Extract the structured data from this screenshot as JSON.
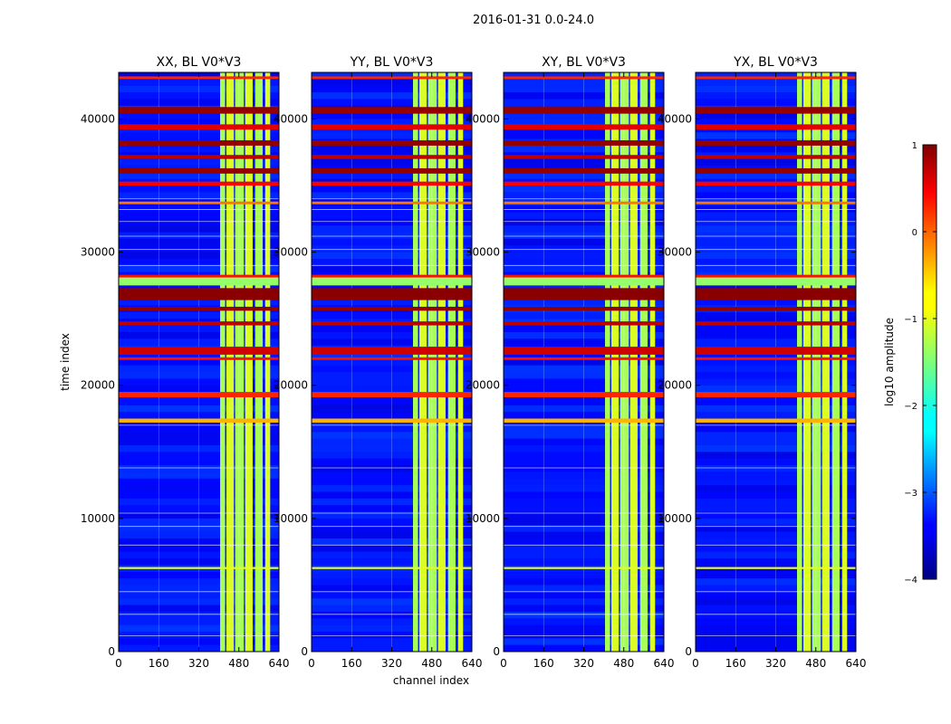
{
  "chart_data": {
    "type": "heatmap",
    "suptitle": "2016-01-31 0.0-24.0",
    "xlabel": "channel index",
    "ylabel": "time index",
    "xlim": [
      0,
      640
    ],
    "ylim": [
      0,
      43500
    ],
    "x_ticks": [
      0,
      160,
      320,
      480,
      640
    ],
    "y_ticks": [
      0,
      10000,
      20000,
      30000,
      40000
    ],
    "y_ticks_text": [
      "0",
      "10000",
      "20000",
      "30000",
      "40000"
    ],
    "panels": [
      {
        "title": "XX, BL V0*V3",
        "pol": "XX"
      },
      {
        "title": "YY, BL V0*V3",
        "pol": "YY"
      },
      {
        "title": "XY, BL V0*V3",
        "pol": "XY"
      },
      {
        "title": "YX, BL V0*V3",
        "pol": "YX"
      }
    ],
    "colorbar": {
      "label": "log10 amplitude",
      "ticks": [
        1,
        0,
        -1,
        -2,
        -3,
        -4
      ],
      "tick_labels": [
        "1",
        "0",
        "−1",
        "−2",
        "−3",
        "−4"
      ],
      "range": [
        -4,
        1
      ],
      "colormap": "jet"
    },
    "background_log_amp": -3.3,
    "signal_bands_channel": [
      [
        405,
        425
      ],
      [
        430,
        460
      ],
      [
        465,
        500
      ],
      [
        505,
        535
      ],
      [
        545,
        575
      ],
      [
        585,
        605
      ]
    ],
    "signal_band_log_amp": -1.2,
    "rfi_time_bands": [
      {
        "t0": 43000,
        "t1": 43200,
        "amp": 0.2
      },
      {
        "t0": 40400,
        "t1": 40900,
        "amp": 0.9
      },
      {
        "t0": 39200,
        "t1": 39600,
        "amp": 0.5
      },
      {
        "t0": 38000,
        "t1": 38400,
        "amp": 0.9
      },
      {
        "t0": 37000,
        "t1": 37300,
        "amp": 0.7
      },
      {
        "t0": 35900,
        "t1": 36300,
        "amp": 0.9
      },
      {
        "t0": 35000,
        "t1": 35300,
        "amp": 0.4
      },
      {
        "t0": 33600,
        "t1": 33800,
        "amp": -0.2
      },
      {
        "t0": 28000,
        "t1": 28300,
        "amp": 0.3
      },
      {
        "t0": 27500,
        "t1": 28100,
        "amp": -1.4
      },
      {
        "t0": 26400,
        "t1": 27300,
        "amp": 0.95
      },
      {
        "t0": 25600,
        "t1": 25900,
        "amp": 0.9
      },
      {
        "t0": 24500,
        "t1": 24800,
        "amp": 0.7
      },
      {
        "t0": 22300,
        "t1": 22900,
        "amp": 0.6
      },
      {
        "t0": 21900,
        "t1": 22100,
        "amp": 0.3
      },
      {
        "t0": 19100,
        "t1": 19500,
        "amp": 0.2
      },
      {
        "t0": 17200,
        "t1": 17500,
        "amp": -0.5
      },
      {
        "t0": 6200,
        "t1": 6350,
        "amp": -1.0
      }
    ]
  }
}
